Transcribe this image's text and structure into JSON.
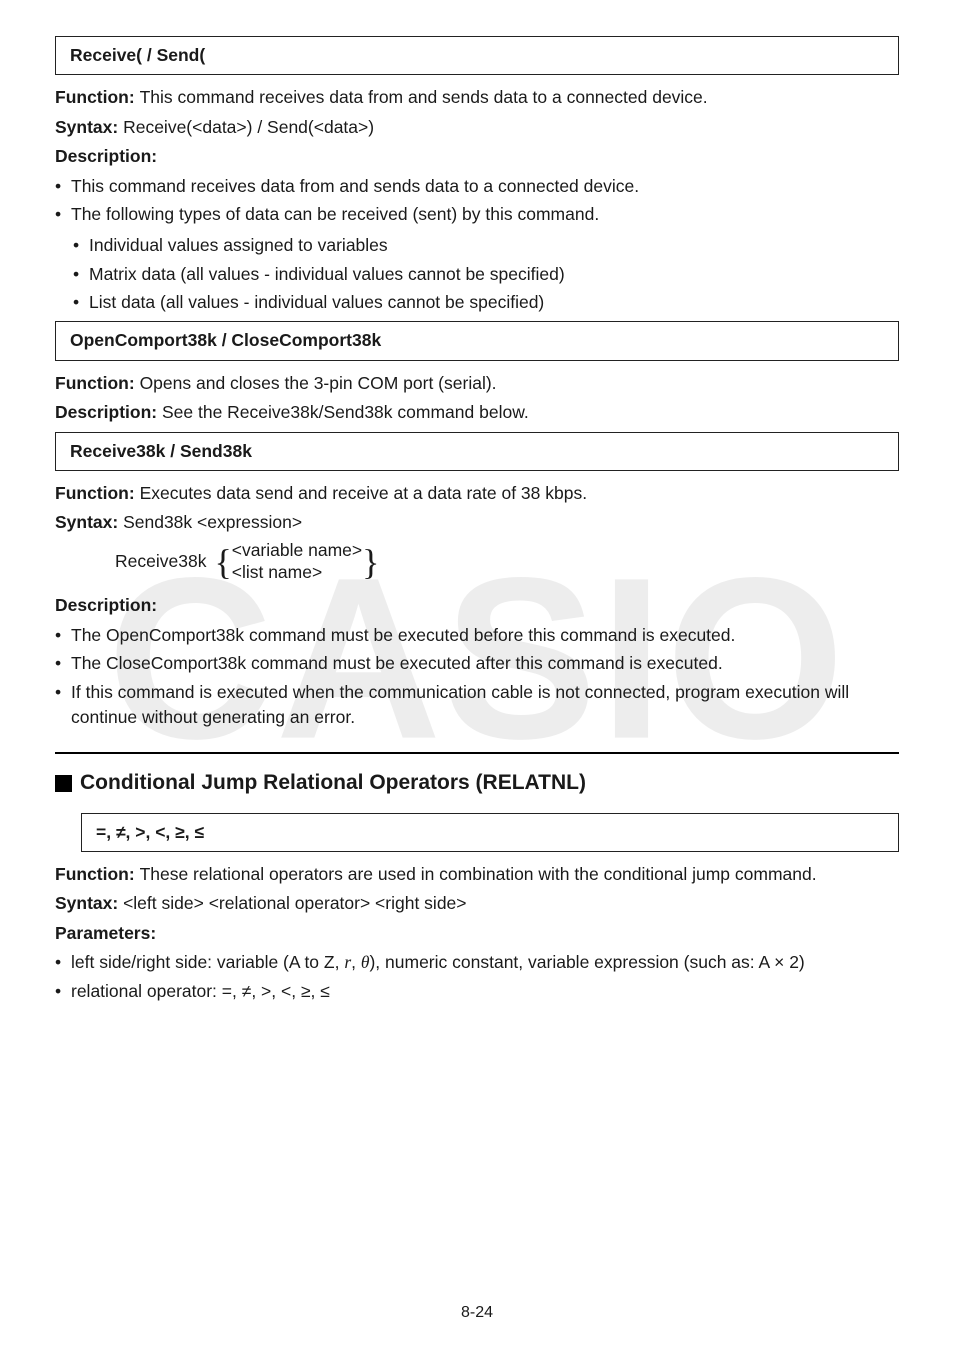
{
  "watermark": "CASIO",
  "cmd1": {
    "title": "Receive( / Send(",
    "function": "This command receives data from and sends data to a connected device.",
    "syntax": "Receive(<data>) / Send(<data>)",
    "desc_label": "Description:",
    "bullets": [
      "This command receives data from and sends data to a connected device.",
      "The following types of data can be received (sent) by this command."
    ],
    "sub": [
      "Individual values assigned to variables",
      "Matrix data (all values - individual values cannot be specified)",
      "List data (all values - individual values cannot be specified)"
    ]
  },
  "cmd2": {
    "title": "OpenComport38k / CloseComport38k",
    "function": "Opens and closes the 3-pin COM port (serial).",
    "description": "See the Receive38k/Send38k command below."
  },
  "cmd3": {
    "title": "Receive38k / Send38k",
    "function": "Executes data send and receive at a data rate of 38 kbps.",
    "syntax": "Send38k <expression>",
    "recv_label": "Receive38k",
    "brace_top": "<variable name>",
    "brace_bot": "<list name>",
    "desc_label": "Description:",
    "bullets": [
      "The OpenComport38k command must be executed before this command is executed.",
      "The CloseComport38k command must be executed after this command is executed.",
      "If this command is executed when the communication cable is not connected, program execution will continue without generating an error."
    ]
  },
  "section2": {
    "heading": "Conditional Jump Relational Operators (RELATNL)",
    "ops_title": "=, ≠, >, <, ≥, ≤",
    "function": "These relational operators are used in combination with the conditional jump command.",
    "syntax": "<left side> <relational operator> <right side>",
    "params_label": "Parameters:",
    "param1_pre": "left side/right side: variable (A to Z, ",
    "param1_r": "r",
    "param1_mid": ", ",
    "param1_theta": "θ",
    "param1_post": "), numeric constant, variable expression (such as: A × 2)",
    "param2": "relational operator: =, ≠, >, <, ≥, ≤"
  },
  "page_num": "8-24",
  "labels": {
    "function": "Function: ",
    "syntax": "Syntax: ",
    "description": "Description: "
  }
}
